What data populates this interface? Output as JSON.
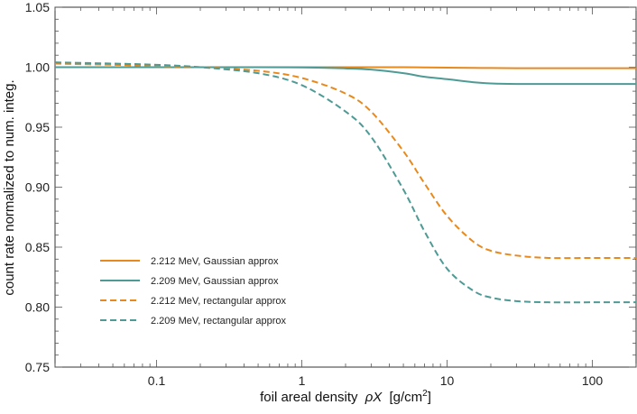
{
  "chart_data": {
    "type": "line",
    "title": "",
    "xlabel": "foil areal density",
    "xlabel_symbol": "ρX",
    "xlabel_unit_prefix": "[g/cm",
    "xlabel_unit_exp": "2",
    "xlabel_unit_suffix": "]",
    "ylabel": "count rate normalized to num. integ.",
    "xscale": "log",
    "xlim": [
      0.02,
      200
    ],
    "ylim": [
      0.75,
      1.05
    ],
    "grid": false,
    "legend_position": "lower-left",
    "xticks": [
      0.1,
      1,
      10,
      100
    ],
    "xtick_labels": [
      "0.1",
      "1",
      "10",
      "100"
    ],
    "yticks": [
      0.75,
      0.8,
      0.85,
      0.9,
      0.95,
      1.0,
      1.05
    ],
    "ytick_labels": [
      "0.75",
      "0.80",
      "0.85",
      "0.90",
      "0.95",
      "1.00",
      "1.05"
    ],
    "x": [
      0.02,
      0.05,
      0.1,
      0.2,
      0.5,
      1,
      2,
      3,
      5,
      7,
      10,
      15,
      20,
      30,
      50,
      100,
      200
    ],
    "series": [
      {
        "name": "2.212 MeV, Gaussian approx",
        "color": "#e8891d",
        "dash": "solid",
        "values": [
          1.0,
          1.0,
          1.0,
          1.0,
          1.0,
          1.0,
          1.0,
          1.0,
          1.0,
          0.9998,
          0.9996,
          0.9994,
          0.9993,
          0.9992,
          0.9992,
          0.9992,
          0.9992
        ]
      },
      {
        "name": "2.209 MeV, Gaussian approx",
        "color": "#4e9a94",
        "dash": "solid",
        "values": [
          1.0,
          1.0,
          1.0,
          1.0,
          1.0,
          0.9998,
          0.999,
          0.998,
          0.995,
          0.992,
          0.99,
          0.9875,
          0.9865,
          0.986,
          0.986,
          0.986,
          0.986
        ]
      },
      {
        "name": "2.212 MeV, rectangular approx",
        "color": "#e8891d",
        "dash": "dashed",
        "values": [
          1.003,
          1.002,
          1.001,
          1.0,
          0.997,
          0.991,
          0.978,
          0.963,
          0.93,
          0.903,
          0.876,
          0.855,
          0.847,
          0.843,
          0.841,
          0.841,
          0.841
        ]
      },
      {
        "name": "2.209 MeV, rectangular approx",
        "color": "#4e9a94",
        "dash": "dashed",
        "values": [
          1.004,
          1.003,
          1.002,
          1.0,
          0.995,
          0.985,
          0.963,
          0.942,
          0.898,
          0.863,
          0.832,
          0.814,
          0.808,
          0.805,
          0.804,
          0.804,
          0.804
        ]
      }
    ]
  }
}
